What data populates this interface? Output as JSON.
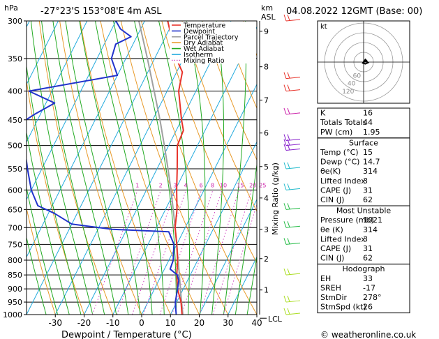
{
  "header": {
    "location": "-27°23'S 153°08'E 4m ASL",
    "datetime": "04.08.2022 12GMT (Base: 00)",
    "hpa_label": "hPa",
    "km_label": "km",
    "asl_label": "ASL",
    "mixing_ratio_label": "Mixing Ratio (g/kg)",
    "xlabel": "Dewpoint / Temperature (°C)",
    "lcl_label": "LCL",
    "copyright": "© weatheronline.co.uk"
  },
  "colors": {
    "temperature": "#e8332a",
    "dewpoint": "#2233cc",
    "parcel": "#a0a0a0",
    "dry_adiabat": "#e89a2a",
    "wet_adiabat": "#22aa22",
    "isotherm": "#22aadd",
    "mixing_ratio": "#d040c0"
  },
  "legend": [
    {
      "label": "Temperature",
      "color": "#e8332a",
      "style": "solid"
    },
    {
      "label": "Dewpoint",
      "color": "#2233cc",
      "style": "solid"
    },
    {
      "label": "Parcel Trajectory",
      "color": "#a0a0a0",
      "style": "solid"
    },
    {
      "label": "Dry Adiabat",
      "color": "#e89a2a",
      "style": "solid"
    },
    {
      "label": "Wet Adiabat",
      "color": "#22aa22",
      "style": "solid"
    },
    {
      "label": "Isotherm",
      "color": "#22aadd",
      "style": "solid"
    },
    {
      "label": "Mixing Ratio",
      "color": "#d040c0",
      "style": "dotted"
    }
  ],
  "chart_data": {
    "type": "line",
    "diagram": "skew-T log-P",
    "xlim": [
      -40,
      40
    ],
    "pressure_levels": [
      300,
      350,
      400,
      450,
      500,
      550,
      600,
      650,
      700,
      750,
      800,
      850,
      900,
      950,
      1000
    ],
    "x_ticks": [
      -30,
      -20,
      -10,
      0,
      10,
      20,
      30,
      40
    ],
    "km_ticks": [
      {
        "label": "1",
        "p": 904
      },
      {
        "label": "2",
        "p": 795
      },
      {
        "label": "3",
        "p": 705
      },
      {
        "label": "4",
        "p": 620
      },
      {
        "label": "5",
        "p": 545
      },
      {
        "label": "6",
        "p": 475
      },
      {
        "label": "7",
        "p": 415
      },
      {
        "label": "8",
        "p": 362
      },
      {
        "label": "9",
        "p": 313
      }
    ],
    "mixing_ratio_values": [
      "1",
      "2",
      "3",
      "4",
      "6",
      "8",
      "10",
      "15",
      "20",
      "25"
    ],
    "mixing_ratio_ticks": [
      1,
      2,
      3,
      4,
      6,
      8,
      10,
      15,
      20,
      25
    ],
    "series": [
      {
        "name": "Temperature",
        "points": [
          [
            1021,
            15.0
          ],
          [
            1000,
            14.0
          ],
          [
            950,
            11.5
          ],
          [
            900,
            8.0
          ],
          [
            850,
            5.3
          ],
          [
            800,
            3.0
          ],
          [
            750,
            0.0
          ],
          [
            700,
            -3.5
          ],
          [
            650,
            -6.0
          ],
          [
            600,
            -9.5
          ],
          [
            550,
            -13.0
          ],
          [
            500,
            -17.0
          ],
          [
            470,
            -17.5
          ],
          [
            450,
            -20.0
          ],
          [
            400,
            -26.0
          ],
          [
            370,
            -28.0
          ],
          [
            350,
            -32.5
          ],
          [
            320,
            -38.0
          ],
          [
            300,
            -42.0
          ]
        ]
      },
      {
        "name": "Dewpoint",
        "points": [
          [
            1021,
            14.7
          ],
          [
            1000,
            12.0
          ],
          [
            970,
            10.5
          ],
          [
            950,
            9.5
          ],
          [
            900,
            8.0
          ],
          [
            870,
            7.0
          ],
          [
            850,
            5.5
          ],
          [
            830,
            2.0
          ],
          [
            800,
            1.5
          ],
          [
            750,
            -1.0
          ],
          [
            712,
            -5.0
          ],
          [
            705,
            -25.0
          ],
          [
            690,
            -40.0
          ],
          [
            660,
            -48.0
          ],
          [
            640,
            -55.0
          ],
          [
            600,
            -60.0
          ],
          [
            550,
            -65.0
          ],
          [
            520,
            -68.0
          ],
          [
            505,
            -75.0
          ],
          [
            490,
            -80.0
          ],
          [
            460,
            -76.0
          ],
          [
            440,
            -72.0
          ],
          [
            420,
            -67.0
          ],
          [
            400,
            -78.0
          ],
          [
            375,
            -50.0
          ],
          [
            350,
            -55.0
          ],
          [
            330,
            -56.0
          ],
          [
            320,
            -52.0
          ],
          [
            310,
            -57.0
          ],
          [
            300,
            -60.0
          ]
        ]
      },
      {
        "name": "Parcel Trajectory",
        "points": [
          [
            1021,
            15.0
          ],
          [
            1000,
            14.3
          ],
          [
            950,
            11.7
          ],
          [
            900,
            9.0
          ],
          [
            850,
            6.2
          ],
          [
            800,
            3.2
          ],
          [
            750,
            0.0
          ],
          [
            700,
            -3.5
          ],
          [
            650,
            -7.3
          ],
          [
            600,
            -11.5
          ],
          [
            550,
            -16.2
          ],
          [
            500,
            -21.5
          ],
          [
            450,
            -27.5
          ],
          [
            400,
            -34.5
          ],
          [
            350,
            -42.5
          ],
          [
            300,
            -52.0
          ]
        ]
      }
    ],
    "wind_barbs": [
      {
        "p": 300,
        "color": "#e8332a"
      },
      {
        "p": 380,
        "color": "#e8332a"
      },
      {
        "p": 400,
        "color": "#e8332a"
      },
      {
        "p": 440,
        "color": "#cc22aa"
      },
      {
        "p": 490,
        "color": "#8822cc"
      },
      {
        "p": 500,
        "color": "#8822cc"
      },
      {
        "p": 510,
        "color": "#8822cc"
      },
      {
        "p": 550,
        "color": "#22bbcc"
      },
      {
        "p": 600,
        "color": "#22bbcc"
      },
      {
        "p": 650,
        "color": "#22bb44"
      },
      {
        "p": 700,
        "color": "#22bb44"
      },
      {
        "p": 750,
        "color": "#22bb44"
      },
      {
        "p": 850,
        "color": "#aadd22"
      },
      {
        "p": 950,
        "color": "#aadd22"
      },
      {
        "p": 1000,
        "color": "#aadd22"
      }
    ]
  },
  "hodograph": {
    "label": "kt",
    "ring_labels": [
      "40",
      "60",
      "120"
    ],
    "points": [
      [
        0,
        0
      ],
      [
        1.5,
        -0.5
      ],
      [
        2.5,
        0.3
      ],
      [
        1,
        1
      ],
      [
        -0.5,
        0.5
      ],
      [
        1,
        -1.5
      ],
      [
        2,
        -0.5
      ]
    ]
  },
  "indices": {
    "rows": [
      {
        "label": "K",
        "value": "16"
      },
      {
        "label": "Totals Totals",
        "value": "44"
      },
      {
        "label": "PW (cm)",
        "value": "1.95"
      }
    ]
  },
  "surface": {
    "title": "Surface",
    "rows": [
      {
        "label": "Temp (°C)",
        "value": "15"
      },
      {
        "label": "Dewp (°C)",
        "value": "14.7"
      },
      {
        "label": "θe(K)",
        "value": "314"
      },
      {
        "label": "Lifted Index",
        "value": "3"
      },
      {
        "label": "CAPE (J)",
        "value": "31"
      },
      {
        "label": "CIN (J)",
        "value": "62"
      }
    ]
  },
  "most_unstable": {
    "title": "Most Unstable",
    "rows": [
      {
        "label": "Pressure (mb)",
        "value": "1021"
      },
      {
        "label": "θe (K)",
        "value": "314"
      },
      {
        "label": "Lifted Index",
        "value": "3"
      },
      {
        "label": "CAPE (J)",
        "value": "31"
      },
      {
        "label": "CIN (J)",
        "value": "62"
      }
    ]
  },
  "hodograph_table": {
    "title": "Hodograph",
    "rows": [
      {
        "label": "EH",
        "value": "33"
      },
      {
        "label": "SREH",
        "value": "-17"
      },
      {
        "label": "StmDir",
        "value": "278°"
      },
      {
        "label": "StmSpd (kt)",
        "value": "26"
      }
    ]
  }
}
